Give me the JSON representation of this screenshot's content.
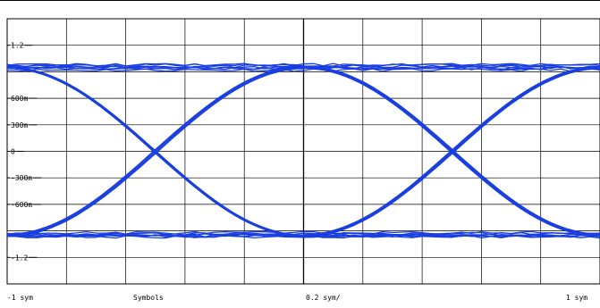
{
  "chart_data": {
    "type": "line",
    "subtype": "eye-diagram",
    "title": "",
    "xlabel": "Symbols",
    "ylabel": "",
    "xlim": [
      -1,
      1
    ],
    "ylim": [
      -1.5,
      1.5
    ],
    "y_ticks": [
      {
        "value": 1.2,
        "label": "1.2"
      },
      {
        "value": 0.6,
        "label": "600m"
      },
      {
        "value": 0.3,
        "label": "300m"
      },
      {
        "value": 0,
        "label": "0"
      },
      {
        "value": -0.3,
        "label": "-300m"
      },
      {
        "value": -0.6,
        "label": "-600m"
      },
      {
        "value": -1.2,
        "label": "-1.2"
      }
    ],
    "x_start_label": "-1 sym",
    "x_scale_label": "0.2 sym/",
    "x_end_label": "1 sym",
    "grid": true,
    "trace_color": "#1a3fe0",
    "grid_color": "#000000",
    "series": [
      {
        "x": [
          -1,
          1
        ],
        "y": [
          0.95,
          0.95
        ]
      },
      {
        "x": [
          -1,
          1
        ],
        "y": [
          -0.95,
          -0.95
        ]
      },
      {
        "x": [
          -1,
          0
        ],
        "y": [
          0.95,
          -0.95
        ]
      },
      {
        "x": [
          -1,
          0
        ],
        "y": [
          -0.95,
          0.95
        ]
      },
      {
        "x": [
          0,
          1
        ],
        "y": [
          0.95,
          -0.95
        ]
      },
      {
        "x": [
          0,
          1
        ],
        "y": [
          -0.95,
          0.95
        ]
      }
    ]
  }
}
